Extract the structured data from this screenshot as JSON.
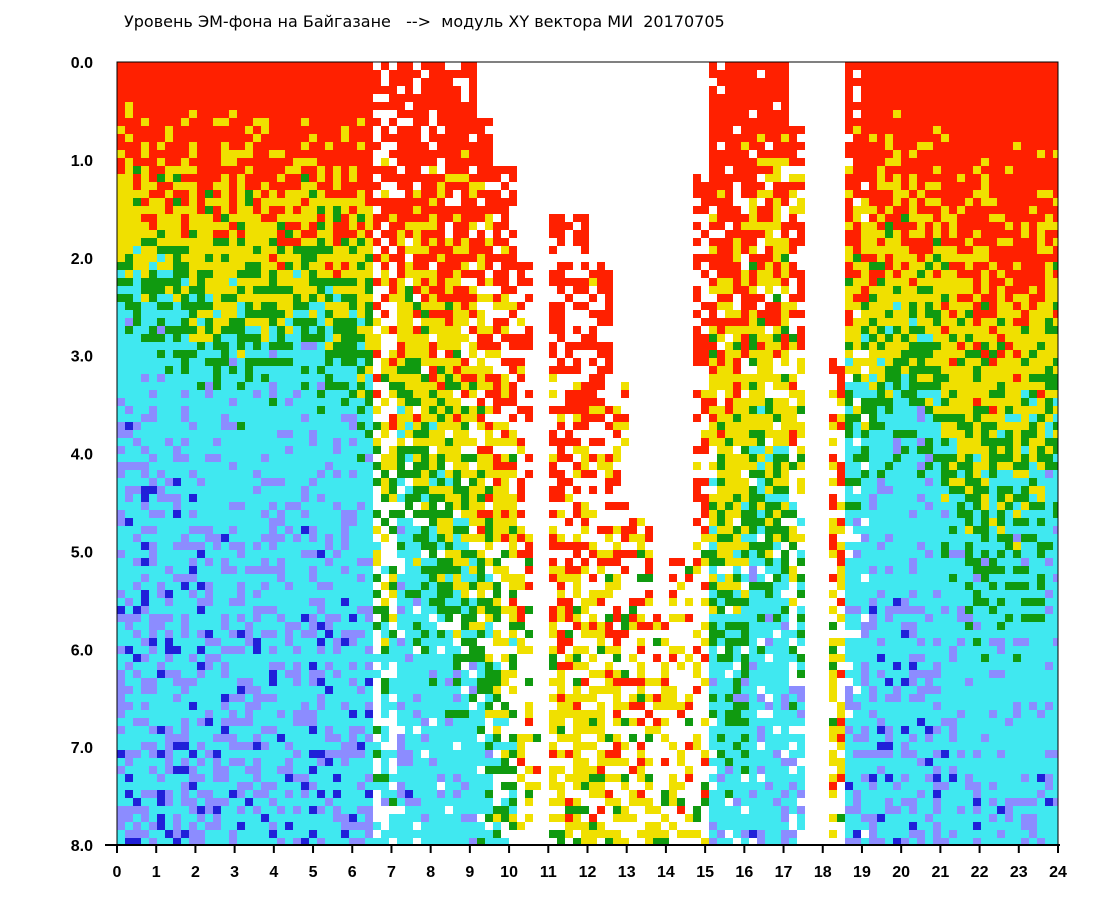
{
  "chart_data": {
    "type": "heatmap",
    "title": "Уровень ЭМ-фона на Байгазане   -->  модуль XY вектора МИ  20170705",
    "xlabel": "",
    "ylabel": "",
    "xlim": [
      0,
      24
    ],
    "ylim": [
      0.0,
      8.0
    ],
    "y_inverted": true,
    "x_ticks": [
      "0",
      "1",
      "2",
      "3",
      "4",
      "5",
      "6",
      "7",
      "8",
      "9",
      "10",
      "11",
      "12",
      "13",
      "14",
      "15",
      "16",
      "17",
      "18",
      "19",
      "20",
      "21",
      "22",
      "23",
      "24"
    ],
    "y_ticks": [
      "0.0",
      "1.0",
      "2.0",
      "3.0",
      "4.0",
      "5.0",
      "6.0",
      "7.0",
      "8.0"
    ],
    "color_scale": [
      "#ff2000",
      "#f0e000",
      "#109a10",
      "#40e8f0",
      "#8c8cff",
      "#2020d8"
    ],
    "profile_by_half_hour": {
      "x_start": [
        0,
        0.5,
        1,
        1.5,
        2,
        2.5,
        3,
        3.5,
        4,
        4.5,
        5,
        5.5,
        6,
        6.5,
        7,
        7.5,
        8,
        8.5,
        9,
        9.5,
        10,
        10.5,
        11,
        11.5,
        12,
        12.5,
        13,
        13.5,
        14,
        14.5,
        15,
        15.5,
        16,
        16.5,
        17,
        17.5,
        18,
        18.5,
        19,
        19.5,
        20,
        20.5,
        21,
        21.5,
        22,
        22.5,
        23,
        23.5
      ],
      "data_onset_y": [
        0,
        0,
        0,
        0,
        0,
        0,
        0,
        0,
        0,
        0,
        0,
        0,
        0,
        0,
        0,
        0,
        0,
        0,
        0.5,
        1,
        2,
        6,
        1.5,
        1.5,
        2,
        3,
        4.5,
        5.5,
        5,
        1,
        0,
        0,
        0,
        0,
        0.5,
        7.5,
        3,
        0,
        0,
        0,
        0,
        0,
        0,
        0,
        0,
        0,
        0,
        0
      ],
      "density": [
        1,
        1,
        1,
        1,
        1,
        1,
        1,
        1,
        1,
        1,
        1,
        1,
        1,
        0.5,
        0.9,
        0.9,
        0.9,
        0.85,
        0.8,
        0.7,
        0.4,
        0.05,
        0.6,
        0.6,
        0.55,
        0.5,
        0.5,
        0.45,
        0.3,
        0.45,
        0.9,
        0.9,
        0.9,
        0.9,
        0.6,
        0.02,
        0.6,
        0.9,
        1,
        1,
        1,
        1,
        1,
        1,
        1,
        1,
        1,
        1
      ],
      "cyan_transition_y": [
        2.3,
        2.6,
        2.6,
        2.8,
        3,
        2.8,
        3,
        3,
        2.9,
        2.8,
        3,
        3.2,
        3.5,
        6,
        4.5,
        5,
        5.5,
        6,
        7,
        8,
        12,
        12,
        12,
        12,
        12,
        12,
        12,
        12,
        12,
        12,
        6,
        6,
        5,
        5,
        6,
        12,
        12,
        4,
        3.6,
        3.4,
        3.4,
        3.6,
        4.5,
        5,
        5,
        5,
        4.8,
        4
      ]
    }
  }
}
